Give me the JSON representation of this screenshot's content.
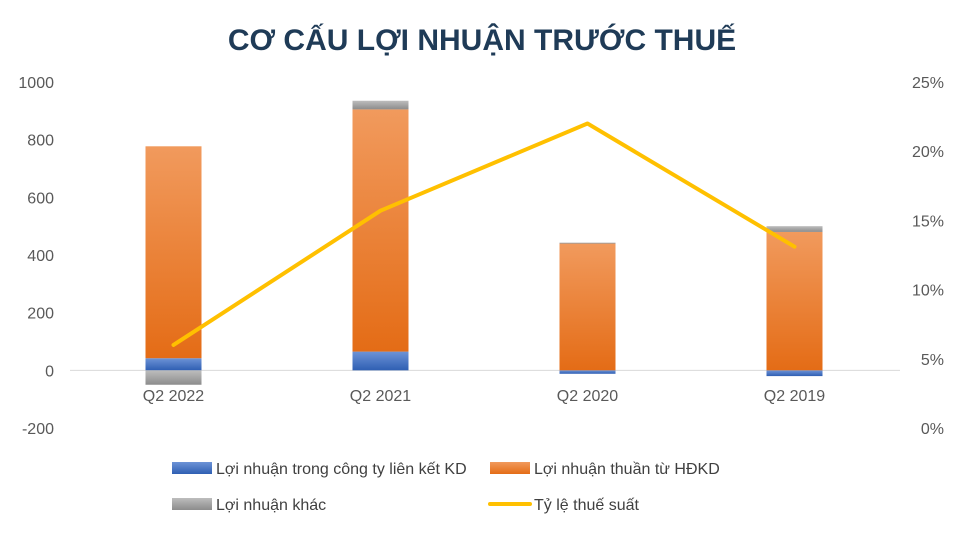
{
  "chart_data": {
    "type": "bar",
    "stacked": true,
    "title": "CƠ CẤU LỢI NHUẬN TRƯỚC THUẾ",
    "categories": [
      "Q2 2022",
      "Q2 2021",
      "Q2 2020",
      "Q2 2019"
    ],
    "ylim": [
      -200,
      1000
    ],
    "yticks": [
      "1000",
      "800",
      "600",
      "400",
      "200",
      "0",
      "-200"
    ],
    "y2lim": [
      0,
      25
    ],
    "y2ticks": [
      "25%",
      "20%",
      "15%",
      "10%",
      "5%",
      "0%"
    ],
    "grid": false,
    "legend_position": "bottom",
    "series": [
      {
        "name": "Lợi nhuận trong công ty liên kết KD",
        "type": "bar",
        "axis": "left",
        "color": "#4472c4",
        "values": [
          42,
          65,
          -12,
          -20
        ]
      },
      {
        "name": "Lợi nhuận thuần từ HĐKD",
        "type": "bar",
        "axis": "left",
        "color": "#ed7d31",
        "values": [
          735,
          840,
          440,
          480
        ]
      },
      {
        "name": "Lợi nhuận khác",
        "type": "bar",
        "axis": "left",
        "color": "#a5a5a5",
        "values": [
          -50,
          30,
          3,
          20
        ]
      },
      {
        "name": "Tỷ lệ thuế suất",
        "type": "line",
        "axis": "right",
        "unit": "%",
        "color": "#ffc000",
        "values": [
          6.0,
          15.7,
          22.0,
          13.1
        ]
      }
    ]
  }
}
